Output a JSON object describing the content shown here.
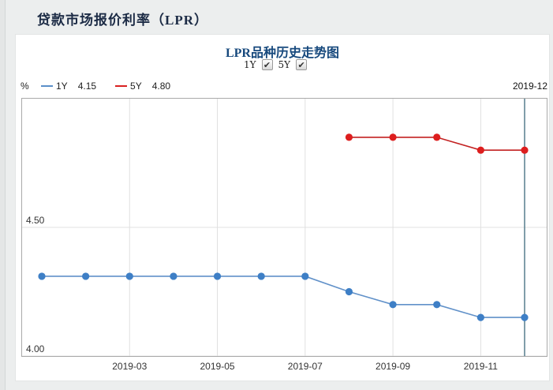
{
  "page": {
    "header_title": "贷款市场报价利率（LPR）"
  },
  "chart": {
    "title": "LPR品种历史走势图",
    "controls": [
      {
        "label": "1Y",
        "checked": true
      },
      {
        "label": "5Y",
        "checked": true
      }
    ],
    "unit_label": "%",
    "legend": [
      {
        "name": "1Y",
        "value": "4.15",
        "color": "#c23a3a"
      },
      {
        "name": "5Y",
        "value": "4.80",
        "color": "#d92121"
      }
    ],
    "legend_colors": {
      "1Y": "#5b8fc9",
      "5Y": "#d92121"
    },
    "cursor_label": "2019-12"
  },
  "chart_data": {
    "type": "line",
    "title": "LPR品种历史走势图",
    "x": [
      "2019-01",
      "2019-02",
      "2019-03",
      "2019-04",
      "2019-05",
      "2019-06",
      "2019-07",
      "2019-08",
      "2019-09",
      "2019-10",
      "2019-11",
      "2019-12"
    ],
    "x_tick_labels": [
      "2019-03",
      "2019-05",
      "2019-07",
      "2019-09",
      "2019-11"
    ],
    "series": [
      {
        "name": "1Y",
        "line_color": "#6191c9",
        "point_color": "#3e7fc6",
        "values": [
          4.31,
          4.31,
          4.31,
          4.31,
          4.31,
          4.31,
          4.31,
          4.25,
          4.2,
          4.2,
          4.15,
          4.15
        ]
      },
      {
        "name": "5Y",
        "line_color": "#c32222",
        "point_color": "#dd1e1e",
        "values": [
          null,
          null,
          null,
          null,
          null,
          null,
          null,
          4.85,
          4.85,
          4.85,
          4.8,
          4.8
        ]
      }
    ],
    "ylim": [
      4.0,
      5.0
    ],
    "y_ticks": [
      4.0,
      4.5
    ],
    "y_tick_labels": [
      "4.00",
      "4.50"
    ],
    "ylabel": "%",
    "xlabel": "",
    "grid": true,
    "legend_position": "top-left",
    "cursor_x": "2019-12",
    "cursor_color": "#567e8e",
    "grid_color": "#e0e0e0"
  }
}
